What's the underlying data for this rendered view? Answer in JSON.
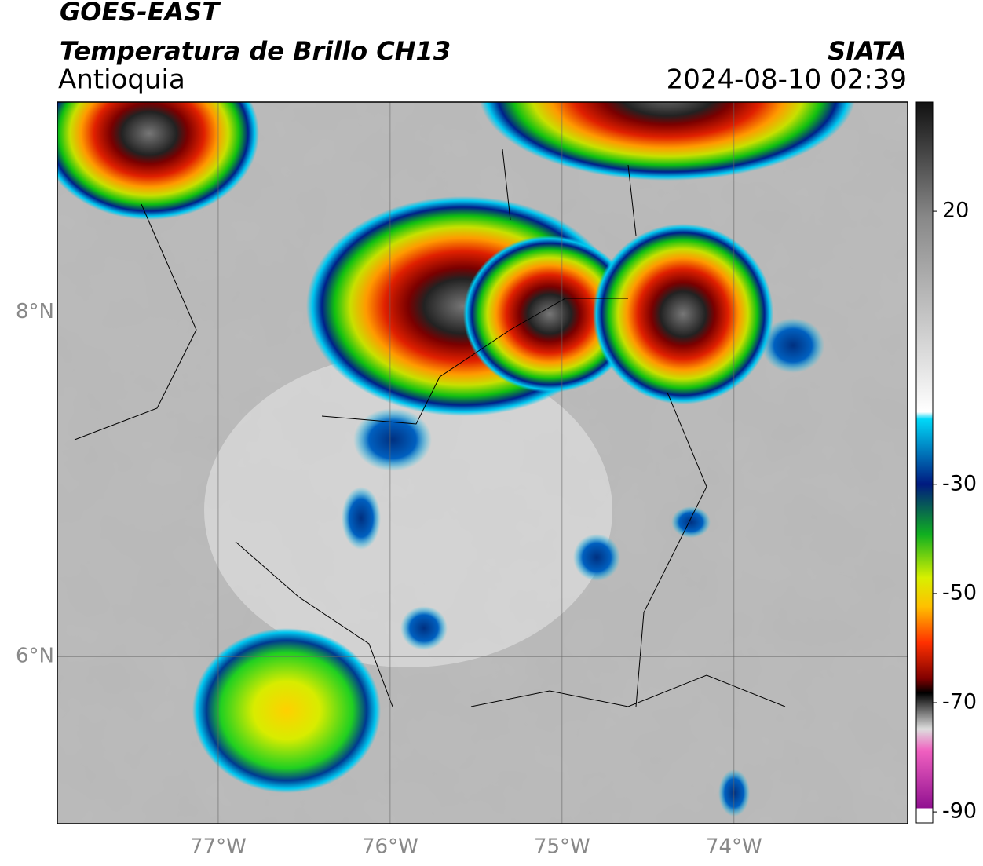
{
  "header": {
    "title": "GOES-EAST",
    "subtitle": "Temperatura de Brillo CH13",
    "region": "Antioquia",
    "agency": "SIATA",
    "datetime": "2024-08-10 02:39"
  },
  "map": {
    "xlim": [
      -77.936,
      -72.99
    ],
    "ylim": [
      5.03,
      9.22
    ],
    "xticks": [
      {
        "value": -77,
        "label": "77°W"
      },
      {
        "value": -76,
        "label": "76°W"
      },
      {
        "value": -75,
        "label": "75°W"
      },
      {
        "value": -74,
        "label": "74°W"
      }
    ],
    "yticks": [
      {
        "value": 8,
        "label": "8°N"
      },
      {
        "value": 6,
        "label": "6°N"
      }
    ]
  },
  "colorbar": {
    "lim": [
      -92,
      40
    ],
    "ticks": [
      20,
      -30,
      -50,
      -70,
      -90
    ]
  }
}
